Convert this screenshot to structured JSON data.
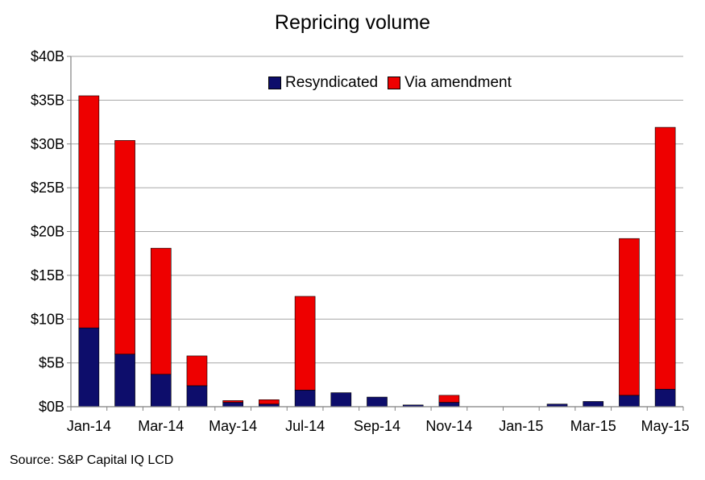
{
  "chart_data": {
    "type": "bar",
    "stacked": true,
    "title": "Repricing volume",
    "source": "Source: S&P Capital IQ LCD",
    "categories": [
      "Jan-14",
      "Feb-14",
      "Mar-14",
      "Apr-14",
      "May-14",
      "Jun-14",
      "Jul-14",
      "Aug-14",
      "Sep-14",
      "Oct-14",
      "Nov-14",
      "Dec-14",
      "Jan-15",
      "Feb-15",
      "Mar-15",
      "Apr-15",
      "May-15"
    ],
    "x_tick_labels": [
      "Jan-14",
      "Mar-14",
      "May-14",
      "Jul-14",
      "Sep-14",
      "Nov-14",
      "Jan-15",
      "Mar-15",
      "May-15"
    ],
    "y_tick_labels": [
      "$0B",
      "$5B",
      "$10B",
      "$15B",
      "$20B",
      "$25B",
      "$30B",
      "$35B",
      "$40B"
    ],
    "y_ticks": [
      0,
      5,
      10,
      15,
      20,
      25,
      30,
      35,
      40
    ],
    "ylim": [
      0,
      40
    ],
    "unit": "$B",
    "grid": true,
    "legend_position": "top-center",
    "series": [
      {
        "name": "Resyndicated",
        "color": "#0d0d6b",
        "values": [
          9.0,
          6.0,
          3.7,
          2.4,
          0.5,
          0.3,
          1.9,
          1.6,
          1.1,
          0.2,
          0.5,
          0,
          0,
          0.3,
          0.6,
          1.3,
          2.0
        ]
      },
      {
        "name": "Via amendment",
        "color": "#ee0000",
        "values": [
          26.5,
          24.4,
          14.4,
          3.4,
          0.2,
          0.5,
          10.7,
          0,
          0,
          0,
          0.8,
          0,
          0,
          0,
          0,
          17.9,
          29.9
        ]
      }
    ]
  }
}
